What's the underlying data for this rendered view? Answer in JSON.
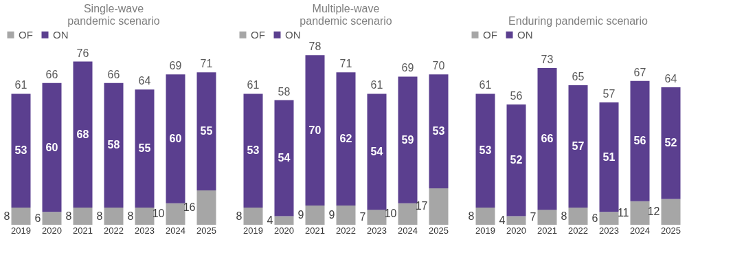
{
  "chart_data": [
    {
      "type": "bar",
      "title": "Single-wave pandemic scenario",
      "stacked": true,
      "data_labels": true,
      "legend": "top",
      "categories": [
        "2019",
        "2020",
        "2021",
        "2022",
        "2023",
        "2024",
        "2025"
      ],
      "series": [
        {
          "name": "OF",
          "color": "#a6a6a6",
          "values": [
            8,
            6,
            8,
            8,
            8,
            10,
            16
          ]
        },
        {
          "name": "ON",
          "color": "#5b3f8f",
          "values": [
            53,
            60,
            68,
            58,
            55,
            60,
            55
          ]
        }
      ],
      "totals": [
        "61",
        "66",
        "76",
        "66",
        "64",
        "69",
        "71"
      ]
    },
    {
      "type": "bar",
      "title": "Multiple-wave pandemic scenario",
      "stacked": true,
      "data_labels": true,
      "legend": "top",
      "categories": [
        "2019",
        "2020",
        "2021",
        "2022",
        "2023",
        "2024",
        "2025"
      ],
      "series": [
        {
          "name": "OF",
          "color": "#a6a6a6",
          "values": [
            8,
            4,
            9,
            9,
            7,
            10,
            17
          ]
        },
        {
          "name": "ON",
          "color": "#5b3f8f",
          "values": [
            53,
            54,
            70,
            62,
            54,
            59,
            53
          ]
        }
      ],
      "totals": [
        "61",
        "58",
        "78",
        "71",
        "61",
        "69",
        "70"
      ]
    },
    {
      "type": "bar",
      "title": "Enduring pandemic scenario",
      "stacked": true,
      "data_labels": true,
      "legend": "top",
      "categories": [
        "2019",
        "2020",
        "2021",
        "2022",
        "2023",
        "2024",
        "2025"
      ],
      "series": [
        {
          "name": "OF",
          "color": "#a6a6a6",
          "values": [
            8,
            4,
            7,
            8,
            6,
            11,
            12
          ]
        },
        {
          "name": "ON",
          "color": "#5b3f8f",
          "values": [
            53,
            52,
            66,
            57,
            51,
            56,
            52
          ]
        }
      ],
      "totals": [
        "61",
        "56",
        "73",
        "65",
        "57",
        "67",
        "64"
      ]
    }
  ]
}
